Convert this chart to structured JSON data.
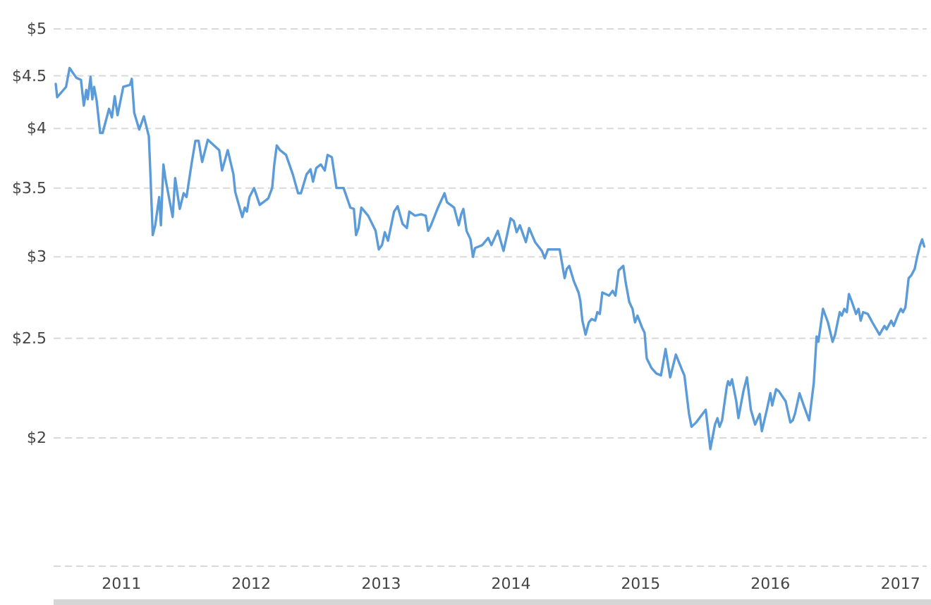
{
  "chart_data": {
    "type": "line",
    "color": "#5b9bd8",
    "log": "y",
    "grid": "y",
    "xlim": [
      "2010-06-24",
      "2017-03-16"
    ],
    "xticks": [
      "2011",
      "2012",
      "2013",
      "2014",
      "2015",
      "2016",
      "2017"
    ],
    "ylim": [
      1.5,
      5.3
    ],
    "yticks": [
      {
        "value": 1.5,
        "label": null
      },
      {
        "value": 2,
        "label": "$2"
      },
      {
        "value": 2.5,
        "label": "$2.5"
      },
      {
        "value": 3,
        "label": "$3"
      },
      {
        "value": 3.5,
        "label": "$3.5"
      },
      {
        "value": 4,
        "label": "$4"
      },
      {
        "value": 4.5,
        "label": "$4.5"
      },
      {
        "value": 5,
        "label": "$5"
      }
    ],
    "x": [
      "2010-06-30",
      "2010-07-04",
      "2010-07-29",
      "2010-08-08",
      "2010-08-27",
      "2010-09-09",
      "2010-09-17",
      "2010-09-24",
      "2010-09-28",
      "2010-10-06",
      "2010-10-11",
      "2010-10-16",
      "2010-10-23",
      "2010-11-02",
      "2010-11-09",
      "2010-11-27",
      "2010-12-05",
      "2010-12-13",
      "2010-12-21",
      "2011-01-06",
      "2011-01-25",
      "2011-01-30",
      "2011-02-06",
      "2011-02-20",
      "2011-03-05",
      "2011-03-19",
      "2011-03-24",
      "2011-03-30",
      "2011-04-06",
      "2011-04-17",
      "2011-04-22",
      "2011-04-29",
      "2011-05-05",
      "2011-05-25",
      "2011-06-01",
      "2011-06-14",
      "2011-06-25",
      "2011-07-03",
      "2011-07-18",
      "2011-07-28",
      "2011-08-06",
      "2011-08-16",
      "2011-09-01",
      "2011-10-03",
      "2011-10-11",
      "2011-10-27",
      "2011-11-12",
      "2011-11-17",
      "2011-12-07",
      "2011-12-14",
      "2011-12-20",
      "2011-12-27",
      "2012-01-09",
      "2012-01-25",
      "2012-02-18",
      "2012-02-29",
      "2012-03-06",
      "2012-03-13",
      "2012-03-22",
      "2012-04-08",
      "2012-04-27",
      "2012-05-12",
      "2012-05-20",
      "2012-06-05",
      "2012-06-16",
      "2012-06-23",
      "2012-07-02",
      "2012-07-15",
      "2012-07-26",
      "2012-08-03",
      "2012-08-15",
      "2012-08-28",
      "2012-09-17",
      "2012-10-06",
      "2012-10-16",
      "2012-10-22",
      "2012-10-29",
      "2012-11-06",
      "2012-11-25",
      "2012-12-16",
      "2012-12-25",
      "2013-01-03",
      "2013-01-11",
      "2013-01-20",
      "2013-02-06",
      "2013-02-16",
      "2013-03-02",
      "2013-03-14",
      "2013-03-21",
      "2013-04-06",
      "2013-04-23",
      "2013-05-06",
      "2013-05-13",
      "2013-05-21",
      "2013-06-08",
      "2013-06-28",
      "2013-07-05",
      "2013-07-25",
      "2013-08-07",
      "2013-08-14",
      "2013-08-20",
      "2013-08-29",
      "2013-09-09",
      "2013-09-16",
      "2013-09-22",
      "2013-10-12",
      "2013-10-29",
      "2013-11-07",
      "2013-11-25",
      "2013-12-11",
      "2013-12-21",
      "2013-12-31",
      "2014-01-09",
      "2014-01-17",
      "2014-01-26",
      "2014-02-12",
      "2014-02-21",
      "2014-03-10",
      "2014-03-29",
      "2014-04-06",
      "2014-04-15",
      "2014-05-18",
      "2014-05-26",
      "2014-06-01",
      "2014-06-07",
      "2014-06-14",
      "2014-06-27",
      "2014-07-10",
      "2014-07-15",
      "2014-07-21",
      "2014-07-30",
      "2014-08-08",
      "2014-08-16",
      "2014-08-26",
      "2014-09-01",
      "2014-09-08",
      "2014-09-15",
      "2014-10-04",
      "2014-10-14",
      "2014-10-22",
      "2014-10-31",
      "2014-11-13",
      "2014-11-20",
      "2014-11-30",
      "2014-12-09",
      "2014-12-16",
      "2014-12-23",
      "2015-01-05",
      "2015-01-12",
      "2015-01-18",
      "2015-01-31",
      "2015-02-14",
      "2015-02-27",
      "2015-03-12",
      "2015-03-25",
      "2015-04-10",
      "2015-04-27",
      "2015-05-04",
      "2015-05-17",
      "2015-05-24",
      "2015-06-06",
      "2015-07-03",
      "2015-07-16",
      "2015-07-29",
      "2015-08-05",
      "2015-08-11",
      "2015-08-18",
      "2015-08-31",
      "2015-09-04",
      "2015-09-09",
      "2015-09-15",
      "2015-09-27",
      "2015-10-03",
      "2015-10-17",
      "2015-10-27",
      "2015-11-07",
      "2015-11-19",
      "2015-12-02",
      "2015-12-08",
      "2015-12-22",
      "2016-01-01",
      "2016-01-06",
      "2016-01-17",
      "2016-01-25",
      "2016-02-13",
      "2016-02-26",
      "2016-03-04",
      "2016-03-10",
      "2016-03-23",
      "2016-04-06",
      "2016-04-19",
      "2016-04-25",
      "2016-05-02",
      "2016-05-10",
      "2016-05-15",
      "2016-05-28",
      "2016-06-11",
      "2016-06-24",
      "2016-07-01",
      "2016-07-14",
      "2016-07-20",
      "2016-07-27",
      "2016-08-03",
      "2016-08-09",
      "2016-08-16",
      "2016-08-29",
      "2016-09-05",
      "2016-09-11",
      "2016-09-18",
      "2016-10-01",
      "2016-10-14",
      "2016-11-03",
      "2016-11-17",
      "2016-11-23",
      "2016-12-06",
      "2016-12-13",
      "2016-12-26",
      "2017-01-02",
      "2017-01-08",
      "2017-01-15",
      "2017-01-24",
      "2017-02-01",
      "2017-02-10",
      "2017-02-17",
      "2017-02-24",
      "2017-03-03",
      "2017-03-09"
    ],
    "values": [
      4.42,
      4.29,
      4.39,
      4.58,
      4.48,
      4.46,
      4.21,
      4.36,
      4.27,
      4.49,
      4.27,
      4.39,
      4.26,
      3.96,
      3.96,
      4.18,
      4.1,
      4.3,
      4.12,
      4.39,
      4.41,
      4.47,
      4.14,
      3.99,
      4.11,
      3.93,
      3.57,
      3.15,
      3.22,
      3.43,
      3.22,
      3.69,
      3.57,
      3.28,
      3.58,
      3.34,
      3.46,
      3.43,
      3.71,
      3.89,
      3.89,
      3.71,
      3.9,
      3.81,
      3.64,
      3.81,
      3.61,
      3.47,
      3.28,
      3.35,
      3.32,
      3.43,
      3.5,
      3.37,
      3.42,
      3.5,
      3.69,
      3.85,
      3.81,
      3.77,
      3.61,
      3.46,
      3.46,
      3.61,
      3.65,
      3.55,
      3.66,
      3.69,
      3.64,
      3.77,
      3.75,
      3.5,
      3.5,
      3.35,
      3.34,
      3.15,
      3.2,
      3.35,
      3.29,
      3.18,
      3.05,
      3.08,
      3.17,
      3.11,
      3.32,
      3.36,
      3.23,
      3.2,
      3.32,
      3.29,
      3.3,
      3.29,
      3.18,
      3.22,
      3.34,
      3.46,
      3.39,
      3.35,
      3.22,
      3.3,
      3.34,
      3.18,
      3.12,
      3.0,
      3.06,
      3.08,
      3.13,
      3.08,
      3.18,
      3.04,
      3.15,
      3.27,
      3.25,
      3.17,
      3.22,
      3.1,
      3.2,
      3.1,
      3.04,
      2.99,
      3.05,
      3.05,
      2.94,
      2.86,
      2.92,
      2.94,
      2.84,
      2.77,
      2.72,
      2.6,
      2.52,
      2.59,
      2.61,
      2.6,
      2.65,
      2.64,
      2.77,
      2.75,
      2.78,
      2.75,
      2.91,
      2.94,
      2.83,
      2.71,
      2.67,
      2.59,
      2.63,
      2.56,
      2.53,
      2.39,
      2.34,
      2.31,
      2.3,
      2.44,
      2.29,
      2.41,
      2.33,
      2.3,
      2.11,
      2.05,
      2.07,
      2.13,
      1.95,
      2.06,
      2.09,
      2.05,
      2.08,
      2.24,
      2.27,
      2.25,
      2.28,
      2.17,
      2.09,
      2.22,
      2.29,
      2.13,
      2.06,
      2.11,
      2.03,
      2.13,
      2.21,
      2.15,
      2.23,
      2.22,
      2.17,
      2.07,
      2.08,
      2.11,
      2.21,
      2.14,
      2.08,
      2.16,
      2.26,
      2.51,
      2.48,
      2.67,
      2.59,
      2.48,
      2.52,
      2.65,
      2.63,
      2.67,
      2.65,
      2.76,
      2.72,
      2.64,
      2.67,
      2.6,
      2.65,
      2.64,
      2.59,
      2.52,
      2.57,
      2.55,
      2.6,
      2.57,
      2.64,
      2.67,
      2.65,
      2.68,
      2.86,
      2.88,
      2.92,
      3.0,
      3.07,
      3.12,
      3.07
    ]
  }
}
